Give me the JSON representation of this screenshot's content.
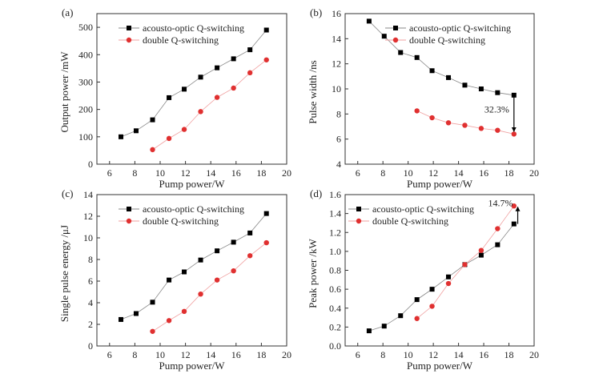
{
  "chart_data": [
    {
      "type": "line",
      "panel_label": "(a)",
      "xlabel": "Pump power/W",
      "ylabel": "Output power /mW",
      "xlim": [
        5,
        20
      ],
      "ylim": [
        0,
        550
      ],
      "xticks": [
        6,
        8,
        10,
        12,
        14,
        16,
        18,
        20
      ],
      "yticks": [
        0,
        100,
        200,
        300,
        400,
        500
      ],
      "legend": "top-left",
      "series": [
        {
          "name": "acousto-optic Q-switching",
          "color": "#000000",
          "marker": "square",
          "x": [
            6.9,
            8.1,
            9.4,
            10.7,
            11.9,
            13.2,
            14.5,
            15.8,
            17.1,
            18.4
          ],
          "y": [
            100,
            122,
            162,
            243,
            274,
            318,
            352,
            385,
            418,
            490
          ]
        },
        {
          "name": "double Q-switching",
          "color": "#e03030",
          "marker": "circle",
          "x": [
            9.4,
            10.7,
            11.9,
            13.2,
            14.5,
            15.8,
            17.1,
            18.4
          ],
          "y": [
            53,
            94,
            127,
            192,
            244,
            278,
            334,
            381
          ]
        }
      ],
      "annotation": null
    },
    {
      "type": "line",
      "panel_label": "(b)",
      "xlabel": "Pump power/W",
      "ylabel": "Pulse width /ns",
      "xlim": [
        5,
        20
      ],
      "ylim": [
        4,
        16
      ],
      "xticks": [
        6,
        8,
        10,
        12,
        14,
        16,
        18,
        20
      ],
      "yticks": [
        4,
        6,
        8,
        10,
        12,
        14,
        16
      ],
      "legend": "top-right",
      "series": [
        {
          "name": "acousto-optic Q-switching",
          "color": "#000000",
          "marker": "square",
          "x": [
            6.9,
            8.1,
            9.4,
            10.7,
            11.9,
            13.2,
            14.5,
            15.8,
            17.1,
            18.4
          ],
          "y": [
            15.4,
            14.2,
            12.9,
            12.5,
            11.45,
            10.9,
            10.3,
            10.0,
            9.7,
            9.5
          ]
        },
        {
          "name": "double Q-switching",
          "color": "#e03030",
          "marker": "circle",
          "x": [
            10.7,
            11.9,
            13.2,
            14.5,
            15.8,
            17.1,
            18.4
          ],
          "y": [
            8.25,
            7.7,
            7.3,
            7.1,
            6.85,
            6.7,
            6.4
          ]
        }
      ],
      "annotation": {
        "text": "32.3%",
        "x": 18.4,
        "from": 9.4,
        "to": 6.6
      }
    },
    {
      "type": "line",
      "panel_label": "(c)",
      "xlabel": "Pump power/W",
      "ylabel": "Single pulse energy /μJ",
      "xlim": [
        5,
        20
      ],
      "ylim": [
        0,
        14
      ],
      "xticks": [
        6,
        8,
        10,
        12,
        14,
        16,
        18,
        20
      ],
      "yticks": [
        0,
        2,
        4,
        6,
        8,
        10,
        12,
        14
      ],
      "legend": "top-left",
      "series": [
        {
          "name": "acousto-optic Q-switching",
          "color": "#000000",
          "marker": "square",
          "x": [
            6.9,
            8.1,
            9.4,
            10.7,
            11.9,
            13.2,
            14.5,
            15.8,
            17.1,
            18.4
          ],
          "y": [
            2.45,
            3.0,
            4.05,
            6.1,
            6.85,
            7.95,
            8.8,
            9.6,
            10.45,
            12.25
          ]
        },
        {
          "name": "double Q-switching",
          "color": "#e03030",
          "marker": "circle",
          "x": [
            9.4,
            10.7,
            11.9,
            13.2,
            14.5,
            15.8,
            17.1,
            18.4
          ],
          "y": [
            1.35,
            2.35,
            3.2,
            4.8,
            6.1,
            6.95,
            8.35,
            9.55
          ]
        }
      ],
      "annotation": null
    },
    {
      "type": "line",
      "panel_label": "(d)",
      "xlabel": "Pump power/W",
      "ylabel": "Peak power /kW",
      "xlim": [
        5,
        20
      ],
      "ylim": [
        0,
        1.6
      ],
      "xticks": [
        6,
        8,
        10,
        12,
        14,
        16,
        18,
        20
      ],
      "yticks": [
        0,
        0.2,
        0.4,
        0.6,
        0.8,
        1.0,
        1.2,
        1.4,
        1.6
      ],
      "legend": "top-left",
      "series": [
        {
          "name": "acousto-optic Q-switching",
          "color": "#000000",
          "marker": "square",
          "x": [
            6.9,
            8.1,
            9.4,
            10.7,
            11.9,
            13.2,
            14.5,
            15.8,
            17.1,
            18.4
          ],
          "y": [
            0.16,
            0.21,
            0.32,
            0.49,
            0.6,
            0.73,
            0.86,
            0.96,
            1.07,
            1.29
          ]
        },
        {
          "name": "double Q-switching",
          "color": "#e03030",
          "marker": "circle",
          "x": [
            10.7,
            11.9,
            13.2,
            14.5,
            15.8,
            17.1,
            18.4
          ],
          "y": [
            0.29,
            0.42,
            0.66,
            0.86,
            1.01,
            1.24,
            1.48
          ]
        }
      ],
      "annotation": {
        "text": "14.7%",
        "x": 18.7,
        "from": 1.29,
        "to": 1.47
      }
    }
  ]
}
